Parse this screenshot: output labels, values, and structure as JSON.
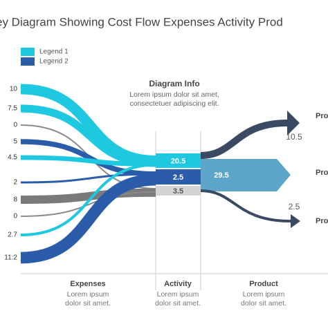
{
  "title": "ey Diagram Showing Cost Flow Expenses Activity Prod",
  "legend": [
    {
      "label": "Legend 1",
      "color": "#1ec8e0"
    },
    {
      "label": "Legend 2",
      "color": "#2a5caa"
    }
  ],
  "info": {
    "heading": "Diagram Info",
    "lines": [
      "Lorem ipsum dolor sit amet,",
      "consectetuer adipiscing elit."
    ]
  },
  "expenses": [
    {
      "value": 10,
      "color": "#1ec8e0"
    },
    {
      "value": 7.5,
      "color": "#1ec8e0"
    },
    {
      "value": 0,
      "color": "#8a8a8a"
    },
    {
      "value": 5,
      "color": "#2a5caa"
    },
    {
      "value": 4.5,
      "color": "#1ec8e0"
    },
    {
      "value": 2,
      "color": "#2a5caa"
    },
    {
      "value": 8,
      "color": "#7a7a7a"
    },
    {
      "value": 0,
      "color": "#8a8a8a"
    },
    {
      "value": 2.7,
      "color": "#1ec8e0"
    },
    {
      "value": 11.2,
      "color": "#2a5caa"
    }
  ],
  "activity": [
    {
      "value": 20.5,
      "color": "#1ec8e0"
    },
    {
      "value": 2.5,
      "color": "#2a5caa"
    },
    {
      "value": 3.5,
      "color": "#d4d4d4"
    }
  ],
  "product": {
    "main": 29.5,
    "main_color": "#5ea6c9",
    "outputs": [
      10.5,
      2.5
    ],
    "output_color": "#3b4a63",
    "labels": [
      "Pro",
      "Pro",
      "Pro"
    ]
  },
  "sections": [
    {
      "title": "Expenses",
      "lines": [
        "Lorem ipsum",
        "dolor sit amet."
      ]
    },
    {
      "title": "Activity",
      "lines": [
        "Lorem ipsum",
        "dolor sit amet."
      ]
    },
    {
      "title": "Product",
      "lines": [
        "Lorem ipsum",
        "dolor sit amet."
      ]
    }
  ]
}
